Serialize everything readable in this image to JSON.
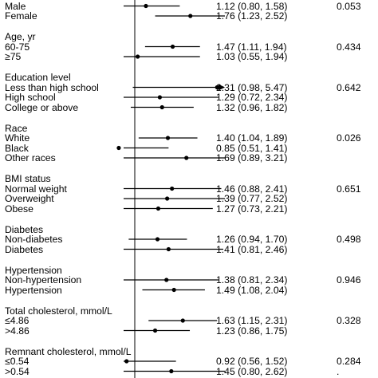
{
  "chart_data": {
    "type": "forest",
    "title": "",
    "xlabel": "",
    "ylabel": "",
    "x_scale": "log",
    "reference_line": 1,
    "xlim": [
      0.5,
      3.0
    ],
    "groups": [
      {
        "label": "",
        "rows": [
          {
            "label": "Male",
            "or": 1.12,
            "lo": 0.8,
            "hi": 1.58,
            "ci_text": "1.12 (0.80, 1.58)",
            "p": "0.053"
          },
          {
            "label": "Female",
            "or": 1.76,
            "lo": 1.23,
            "hi": 2.52,
            "ci_text": "1.76 (1.23, 2.52)",
            "p": ""
          }
        ]
      },
      {
        "label": "Age, yr",
        "rows": [
          {
            "label": "60-75",
            "or": 1.47,
            "lo": 1.11,
            "hi": 1.94,
            "ci_text": "1.47 (1.11, 1.94)",
            "p": "0.434"
          },
          {
            "label": "≥75",
            "or": 1.03,
            "lo": 0.55,
            "hi": 1.94,
            "ci_text": "1.03 (0.55, 1.94)",
            "p": ""
          }
        ]
      },
      {
        "label": "Education level",
        "rows": [
          {
            "label": "Less than high school",
            "or": 2.31,
            "lo": 0.98,
            "hi": 5.47,
            "ci_text": "2.31 (0.98, 5.47)",
            "p": "0.642",
            "arrow": true
          },
          {
            "label": "High school",
            "or": 1.29,
            "lo": 0.72,
            "hi": 2.34,
            "ci_text": "1.29 (0.72, 2.34)",
            "p": ""
          },
          {
            "label": "College or above",
            "or": 1.32,
            "lo": 0.96,
            "hi": 1.82,
            "ci_text": "1.32 (0.96, 1.82)",
            "p": ""
          }
        ]
      },
      {
        "label": "Race",
        "rows": [
          {
            "label": "White",
            "or": 1.4,
            "lo": 1.04,
            "hi": 1.89,
            "ci_text": "1.40 (1.04, 1.89)",
            "p": "0.026"
          },
          {
            "label": "Black",
            "or": 0.85,
            "lo": 0.51,
            "hi": 1.41,
            "ci_text": "0.85 (0.51, 1.41)",
            "p": ""
          },
          {
            "label": "Other races",
            "or": 1.69,
            "lo": 0.89,
            "hi": 3.21,
            "ci_text": "1.69 (0.89, 3.21)",
            "p": ""
          }
        ]
      },
      {
        "label": "BMI status",
        "rows": [
          {
            "label": "Normal weight",
            "or": 1.46,
            "lo": 0.88,
            "hi": 2.41,
            "ci_text": "1.46 (0.88, 2.41)",
            "p": "0.651"
          },
          {
            "label": "Overweight",
            "or": 1.39,
            "lo": 0.77,
            "hi": 2.52,
            "ci_text": "1.39 (0.77, 2.52)",
            "p": ""
          },
          {
            "label": "Obese",
            "or": 1.27,
            "lo": 0.73,
            "hi": 2.21,
            "ci_text": "1.27 (0.73, 2.21)",
            "p": ""
          }
        ]
      },
      {
        "label": "Diabetes",
        "rows": [
          {
            "label": "Non-diabetes",
            "or": 1.26,
            "lo": 0.94,
            "hi": 1.7,
            "ci_text": "1.26 (0.94, 1.70)",
            "p": "0.498"
          },
          {
            "label": "Diabetes",
            "or": 1.41,
            "lo": 0.81,
            "hi": 2.46,
            "ci_text": "1.41 (0.81, 2.46)",
            "p": ""
          }
        ]
      },
      {
        "label": "Hypertension",
        "rows": [
          {
            "label": "Non-hypertension",
            "or": 1.38,
            "lo": 0.81,
            "hi": 2.34,
            "ci_text": "1.38 (0.81, 2.34)",
            "p": "0.946"
          },
          {
            "label": "Hypertension",
            "or": 1.49,
            "lo": 1.08,
            "hi": 2.04,
            "ci_text": "1.49 (1.08, 2.04)",
            "p": ""
          }
        ]
      },
      {
        "label": "Total cholesterol, mmol/L",
        "rows": [
          {
            "label": "≤4.86",
            "or": 1.63,
            "lo": 1.15,
            "hi": 2.31,
            "ci_text": "1.63 (1.15, 2.31)",
            "p": "0.328"
          },
          {
            "label": ">4.86",
            "or": 1.23,
            "lo": 0.86,
            "hi": 1.75,
            "ci_text": "1.23 (0.86, 1.75)",
            "p": ""
          }
        ]
      },
      {
        "label": "Remnant cholesterol, mmol/L",
        "rows": [
          {
            "label": "≤0.54",
            "or": 0.92,
            "lo": 0.56,
            "hi": 1.52,
            "ci_text": "0.92 (0.56, 1.52)",
            "p": "0.284"
          },
          {
            "label": ">0.54",
            "or": 1.45,
            "lo": 0.8,
            "hi": 2.62,
            "ci_text": "1.45 (0.80, 2.62)",
            "p": "."
          }
        ]
      }
    ]
  }
}
